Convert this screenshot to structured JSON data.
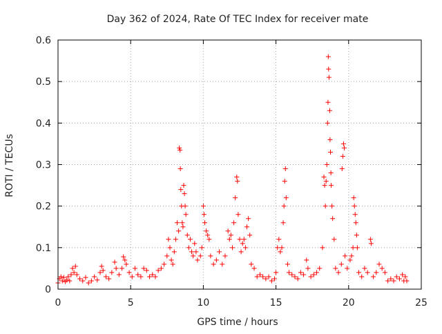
{
  "chart_data": {
    "type": "scatter",
    "title": "Day 362 of 2024, Rate Of TEC Index for receiver mate",
    "xlabel": "GPS time / hours",
    "ylabel": "ROTI / TECUs",
    "xlim": [
      0,
      25
    ],
    "ylim": [
      0,
      0.6
    ],
    "xticks": [
      0,
      5,
      10,
      15,
      20,
      25
    ],
    "xtick_labels": [
      "0",
      "5",
      "10",
      "15",
      "20",
      "25"
    ],
    "yticks": [
      0,
      0.1,
      0.2,
      0.3,
      0.4,
      0.5,
      0.6
    ],
    "ytick_labels": [
      "0",
      "0.1",
      "0.2",
      "0.3",
      "0.4",
      "0.5",
      "0.6"
    ],
    "grid": true,
    "marker": "plus",
    "color": "#ff0000",
    "series": [
      {
        "points": [
          [
            0.0,
            0.015
          ],
          [
            0.1,
            0.025
          ],
          [
            0.2,
            0.03
          ],
          [
            0.3,
            0.02
          ],
          [
            0.4,
            0.028
          ],
          [
            0.5,
            0.018
          ],
          [
            0.6,
            0.022
          ],
          [
            0.7,
            0.03
          ],
          [
            0.8,
            0.02
          ],
          [
            0.9,
            0.035
          ],
          [
            1.0,
            0.05
          ],
          [
            1.1,
            0.04
          ],
          [
            1.2,
            0.055
          ],
          [
            1.3,
            0.035
          ],
          [
            1.5,
            0.025
          ],
          [
            1.7,
            0.02
          ],
          [
            1.9,
            0.028
          ],
          [
            2.1,
            0.015
          ],
          [
            2.3,
            0.02
          ],
          [
            2.5,
            0.03
          ],
          [
            2.7,
            0.022
          ],
          [
            2.9,
            0.04
          ],
          [
            3.0,
            0.055
          ],
          [
            3.1,
            0.045
          ],
          [
            3.3,
            0.03
          ],
          [
            3.5,
            0.025
          ],
          [
            3.7,
            0.04
          ],
          [
            3.9,
            0.065
          ],
          [
            4.0,
            0.05
          ],
          [
            4.2,
            0.035
          ],
          [
            4.4,
            0.05
          ],
          [
            4.5,
            0.078
          ],
          [
            4.6,
            0.07
          ],
          [
            4.7,
            0.06
          ],
          [
            4.9,
            0.04
          ],
          [
            5.1,
            0.03
          ],
          [
            5.3,
            0.05
          ],
          [
            5.5,
            0.035
          ],
          [
            5.7,
            0.03
          ],
          [
            5.9,
            0.05
          ],
          [
            6.1,
            0.045
          ],
          [
            6.3,
            0.03
          ],
          [
            6.5,
            0.035
          ],
          [
            6.7,
            0.03
          ],
          [
            6.9,
            0.045
          ],
          [
            7.1,
            0.05
          ],
          [
            7.3,
            0.06
          ],
          [
            7.5,
            0.08
          ],
          [
            7.6,
            0.12
          ],
          [
            7.7,
            0.1
          ],
          [
            7.8,
            0.07
          ],
          [
            7.9,
            0.06
          ],
          [
            8.0,
            0.09
          ],
          [
            8.1,
            0.12
          ],
          [
            8.2,
            0.16
          ],
          [
            8.3,
            0.14
          ],
          [
            8.35,
            0.34
          ],
          [
            8.4,
            0.335
          ],
          [
            8.42,
            0.29
          ],
          [
            8.45,
            0.24
          ],
          [
            8.5,
            0.2
          ],
          [
            8.55,
            0.16
          ],
          [
            8.6,
            0.15
          ],
          [
            8.65,
            0.25
          ],
          [
            8.7,
            0.23
          ],
          [
            8.75,
            0.2
          ],
          [
            8.8,
            0.18
          ],
          [
            8.9,
            0.13
          ],
          [
            9.0,
            0.1
          ],
          [
            9.1,
            0.12
          ],
          [
            9.2,
            0.09
          ],
          [
            9.3,
            0.08
          ],
          [
            9.4,
            0.11
          ],
          [
            9.5,
            0.09
          ],
          [
            9.6,
            0.07
          ],
          [
            9.8,
            0.08
          ],
          [
            9.9,
            0.1
          ],
          [
            10.0,
            0.2
          ],
          [
            10.05,
            0.18
          ],
          [
            10.1,
            0.16
          ],
          [
            10.2,
            0.14
          ],
          [
            10.3,
            0.13
          ],
          [
            10.4,
            0.12
          ],
          [
            10.5,
            0.08
          ],
          [
            10.7,
            0.06
          ],
          [
            10.9,
            0.07
          ],
          [
            11.1,
            0.09
          ],
          [
            11.3,
            0.06
          ],
          [
            11.5,
            0.08
          ],
          [
            11.7,
            0.14
          ],
          [
            11.8,
            0.12
          ],
          [
            11.9,
            0.13
          ],
          [
            12.0,
            0.1
          ],
          [
            12.1,
            0.16
          ],
          [
            12.2,
            0.22
          ],
          [
            12.3,
            0.27
          ],
          [
            12.35,
            0.26
          ],
          [
            12.4,
            0.18
          ],
          [
            12.5,
            0.12
          ],
          [
            12.6,
            0.09
          ],
          [
            12.7,
            0.11
          ],
          [
            12.8,
            0.12
          ],
          [
            12.9,
            0.1
          ],
          [
            13.0,
            0.15
          ],
          [
            13.1,
            0.17
          ],
          [
            13.2,
            0.13
          ],
          [
            13.3,
            0.06
          ],
          [
            13.5,
            0.05
          ],
          [
            13.7,
            0.03
          ],
          [
            13.9,
            0.035
          ],
          [
            14.1,
            0.03
          ],
          [
            14.3,
            0.025
          ],
          [
            14.5,
            0.03
          ],
          [
            14.7,
            0.02
          ],
          [
            14.9,
            0.025
          ],
          [
            15.0,
            0.04
          ],
          [
            15.1,
            0.1
          ],
          [
            15.2,
            0.12
          ],
          [
            15.3,
            0.09
          ],
          [
            15.4,
            0.1
          ],
          [
            15.5,
            0.16
          ],
          [
            15.55,
            0.2
          ],
          [
            15.6,
            0.26
          ],
          [
            15.65,
            0.29
          ],
          [
            15.7,
            0.22
          ],
          [
            15.8,
            0.06
          ],
          [
            15.9,
            0.04
          ],
          [
            16.1,
            0.035
          ],
          [
            16.3,
            0.03
          ],
          [
            16.5,
            0.025
          ],
          [
            16.7,
            0.04
          ],
          [
            16.9,
            0.035
          ],
          [
            17.1,
            0.07
          ],
          [
            17.2,
            0.05
          ],
          [
            17.4,
            0.03
          ],
          [
            17.6,
            0.035
          ],
          [
            17.8,
            0.04
          ],
          [
            18.0,
            0.05
          ],
          [
            18.2,
            0.1
          ],
          [
            18.3,
            0.27
          ],
          [
            18.35,
            0.25
          ],
          [
            18.4,
            0.2
          ],
          [
            18.45,
            0.26
          ],
          [
            18.5,
            0.3
          ],
          [
            18.55,
            0.4
          ],
          [
            18.58,
            0.45
          ],
          [
            18.6,
            0.56
          ],
          [
            18.62,
            0.53
          ],
          [
            18.65,
            0.51
          ],
          [
            18.7,
            0.43
          ],
          [
            18.72,
            0.36
          ],
          [
            18.75,
            0.33
          ],
          [
            18.78,
            0.28
          ],
          [
            18.8,
            0.25
          ],
          [
            18.85,
            0.2
          ],
          [
            18.9,
            0.17
          ],
          [
            19.0,
            0.12
          ],
          [
            19.1,
            0.05
          ],
          [
            19.3,
            0.04
          ],
          [
            19.5,
            0.06
          ],
          [
            19.55,
            0.29
          ],
          [
            19.6,
            0.32
          ],
          [
            19.65,
            0.35
          ],
          [
            19.7,
            0.34
          ],
          [
            19.75,
            0.08
          ],
          [
            19.9,
            0.05
          ],
          [
            20.1,
            0.07
          ],
          [
            20.2,
            0.08
          ],
          [
            20.3,
            0.1
          ],
          [
            20.35,
            0.22
          ],
          [
            20.4,
            0.2
          ],
          [
            20.45,
            0.18
          ],
          [
            20.5,
            0.16
          ],
          [
            20.55,
            0.13
          ],
          [
            20.6,
            0.1
          ],
          [
            20.7,
            0.04
          ],
          [
            20.9,
            0.03
          ],
          [
            21.1,
            0.05
          ],
          [
            21.3,
            0.04
          ],
          [
            21.5,
            0.12
          ],
          [
            21.55,
            0.11
          ],
          [
            21.7,
            0.03
          ],
          [
            21.9,
            0.04
          ],
          [
            22.1,
            0.06
          ],
          [
            22.3,
            0.05
          ],
          [
            22.5,
            0.04
          ],
          [
            22.7,
            0.02
          ],
          [
            22.9,
            0.025
          ],
          [
            23.1,
            0.02
          ],
          [
            23.3,
            0.03
          ],
          [
            23.5,
            0.025
          ],
          [
            23.7,
            0.035
          ],
          [
            23.8,
            0.02
          ],
          [
            23.9,
            0.03
          ],
          [
            24.0,
            0.02
          ]
        ]
      }
    ]
  }
}
